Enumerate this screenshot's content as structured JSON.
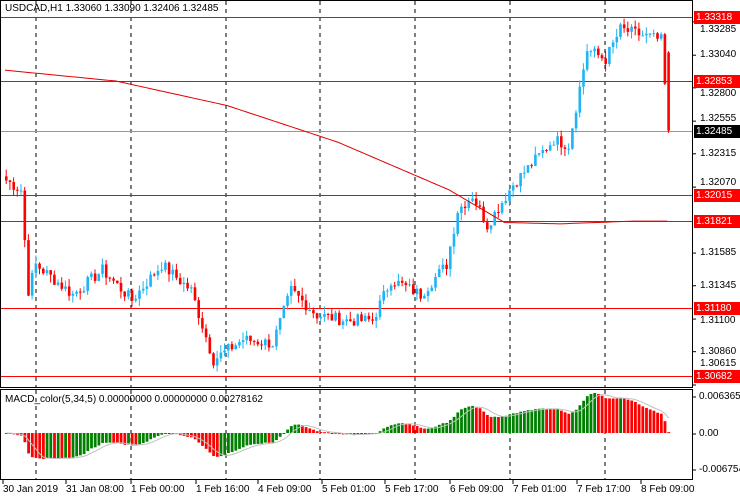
{
  "header": {
    "title": "USDCAD,H1  1.33060 1.33090 1.32406 1.32485"
  },
  "indicator": {
    "title": "MACD_color(5,34,5) 0.00000000 0.00000000 0.00278162"
  },
  "price_axis": [
    "1.33285",
    "1.33040",
    "1.32800",
    "1.32555",
    "1.32315",
    "1.32070",
    "1.31585",
    "1.31345",
    "1.31100",
    "1.30860",
    "1.30615"
  ],
  "macd_axis": [
    "0.0063656",
    "0.00",
    "-0.006754"
  ],
  "levels": [
    {
      "label": "1.33318",
      "price": 1.33318
    },
    {
      "label": "1.32853",
      "price": 1.32853
    },
    {
      "label": "1.32015",
      "price": 1.32015
    },
    {
      "label": "1.31821",
      "price": 1.31821
    },
    {
      "label": "1.31180",
      "price": 1.3118
    },
    {
      "label": "1.30682",
      "price": 1.30682
    }
  ],
  "current_price": {
    "label": "1.32485",
    "price": 1.32485
  },
  "time_axis": [
    "30 Jan 2019",
    "31 Jan 08:00",
    "1 Feb 00:00",
    "1 Feb 16:00",
    "4 Feb 09:00",
    "5 Feb 01:00",
    "5 Feb 17:00",
    "6 Feb 09:00",
    "7 Feb 01:00",
    "7 Feb 17:00",
    "8 Feb 09:00"
  ],
  "colors": {
    "up": "#1EB4F5",
    "down": "#FF0000",
    "macd_up": "#008000",
    "macd_down": "#FF0000",
    "signal": "#C0C0C0",
    "level": "#FF0000",
    "ma": "#E00000"
  },
  "chart_data": {
    "type": "candlestick",
    "symbol": "USDCAD",
    "timeframe": "H1",
    "price_range": [
      1.30615,
      1.3335
    ],
    "path": [
      [
        0,
        1.3212
      ],
      [
        4,
        1.3205
      ],
      [
        6,
        1.3131
      ],
      [
        8,
        1.315
      ],
      [
        18,
        1.3128
      ],
      [
        26,
        1.3146
      ],
      [
        34,
        1.3124
      ],
      [
        42,
        1.315
      ],
      [
        50,
        1.3131
      ],
      [
        56,
        1.308
      ],
      [
        64,
        1.3095
      ],
      [
        72,
        1.3092
      ],
      [
        77,
        1.3131
      ],
      [
        84,
        1.3113
      ],
      [
        92,
        1.3109
      ],
      [
        99,
        1.3109
      ],
      [
        104,
        1.3139
      ],
      [
        112,
        1.3128
      ],
      [
        119,
        1.315
      ],
      [
        122,
        1.319
      ],
      [
        126,
        1.3201
      ],
      [
        130,
        1.3179
      ],
      [
        137,
        1.3209
      ],
      [
        148,
        1.3242
      ],
      [
        152,
        1.3238
      ],
      [
        157,
        1.3308
      ],
      [
        162,
        1.3301
      ],
      [
        166,
        1.3323
      ],
      [
        177,
        1.3315
      ],
      [
        179,
        1.32485
      ]
    ],
    "ma": [
      [
        0,
        1.3293
      ],
      [
        30,
        1.3285
      ],
      [
        60,
        1.3267
      ],
      [
        90,
        1.324
      ],
      [
        120,
        1.3205
      ],
      [
        135,
        1.3181
      ],
      [
        150,
        1.318
      ],
      [
        170,
        1.3182
      ],
      [
        179,
        1.3182
      ]
    ]
  }
}
